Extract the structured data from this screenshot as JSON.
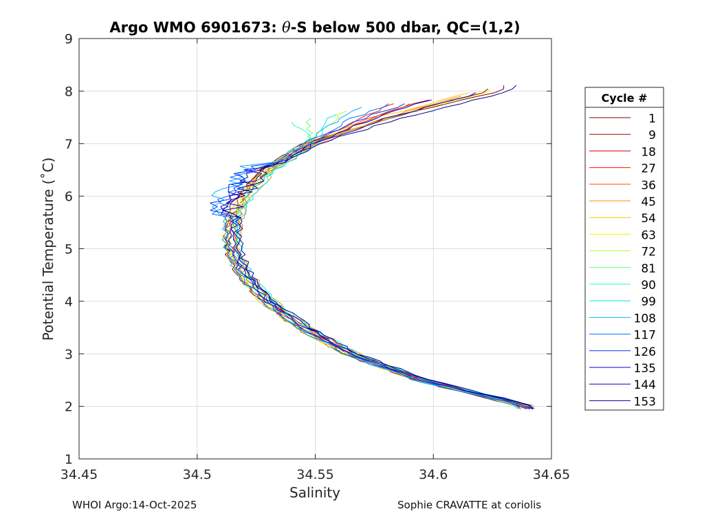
{
  "chart_data": {
    "type": "line",
    "title_prefix": "Argo WMO 6901673: ",
    "title_theta": "θ",
    "title_suffix": "-S below 500 dbar,  QC=(1,2)",
    "xlabel": "Salinity",
    "ylabel": "Potential Temperature (˚C)",
    "xlim": [
      34.45,
      34.65
    ],
    "ylim": [
      1,
      9
    ],
    "xticks": [
      34.45,
      34.5,
      34.55,
      34.6,
      34.65
    ],
    "xtick_labels": [
      "34.45",
      "34.5",
      "34.55",
      "34.6",
      "34.65"
    ],
    "yticks": [
      1,
      2,
      3,
      4,
      5,
      6,
      7,
      8,
      9
    ],
    "ytick_labels": [
      "1",
      "2",
      "3",
      "4",
      "5",
      "6",
      "7",
      "8",
      "9"
    ],
    "grid": true,
    "legend": {
      "title": "Cycle #",
      "placement": "outside-right",
      "entries": [
        {
          "label": "1",
          "color": "#800000"
        },
        {
          "label": "9",
          "color": "#a80000"
        },
        {
          "label": "18",
          "color": "#d80000"
        },
        {
          "label": "27",
          "color": "#ff1000"
        },
        {
          "label": "36",
          "color": "#ff4800"
        },
        {
          "label": "45",
          "color": "#ff8800"
        },
        {
          "label": "54",
          "color": "#ffc400"
        },
        {
          "label": "63",
          "color": "#f0f000"
        },
        {
          "label": "72",
          "color": "#a8ff30"
        },
        {
          "label": "81",
          "color": "#60ff70"
        },
        {
          "label": "90",
          "color": "#20ffb0"
        },
        {
          "label": "99",
          "color": "#00e8f0"
        },
        {
          "label": "108",
          "color": "#00b0ff"
        },
        {
          "label": "117",
          "color": "#0070ff"
        },
        {
          "label": "126",
          "color": "#0030ff"
        },
        {
          "label": "135",
          "color": "#0000e0"
        },
        {
          "label": "144",
          "color": "#0000b8"
        },
        {
          "label": "153",
          "color": "#000090"
        }
      ]
    },
    "profile_shape": {
      "T": [
        2.0,
        2.5,
        3.0,
        3.5,
        4.0,
        4.5,
        5.0,
        5.5,
        6.0,
        6.5,
        7.0,
        7.5,
        8.0
      ],
      "S": [
        34.64,
        34.595,
        34.565,
        34.545,
        34.53,
        34.52,
        34.515,
        34.515,
        34.52,
        34.53,
        34.548,
        34.575,
        34.61
      ]
    },
    "series": [
      {
        "cycle": 1,
        "smax": 34.635,
        "color": "#800000"
      },
      {
        "cycle": 9,
        "smax": 34.625,
        "color": "#a80000"
      },
      {
        "cycle": 18,
        "smax": 34.61,
        "color": "#d80000"
      },
      {
        "cycle": 27,
        "smax": 34.6,
        "color": "#ff1000"
      },
      {
        "cycle": 36,
        "smax": 34.605,
        "color": "#ff4800"
      },
      {
        "cycle": 45,
        "smax": 34.615,
        "color": "#ff8800"
      },
      {
        "cycle": 54,
        "smax": 34.62,
        "color": "#ffc400"
      },
      {
        "cycle": 63,
        "smax": 34.628,
        "color": "#f0f000"
      },
      {
        "cycle": 72,
        "smax": 34.59,
        "color": "#a8ff30"
      },
      {
        "cycle": 81,
        "smax": 34.58,
        "color": "#60ff70"
      },
      {
        "cycle": 90,
        "smax": 34.575,
        "color": "#20ffb0"
      },
      {
        "cycle": 99,
        "smax": 34.585,
        "color": "#00e8f0"
      },
      {
        "cycle": 108,
        "smax": 34.595,
        "color": "#00b0ff"
      },
      {
        "cycle": 117,
        "smax": 34.6,
        "color": "#0070ff"
      },
      {
        "cycle": 126,
        "smax": 34.605,
        "color": "#0030ff"
      },
      {
        "cycle": 135,
        "smax": 34.61,
        "color": "#0000e0"
      },
      {
        "cycle": 144,
        "smax": 34.62,
        "color": "#0000b8"
      },
      {
        "cycle": 153,
        "smax": 34.633,
        "color": "#000090"
      }
    ]
  },
  "footer": {
    "left": "WHOI Argo:14-Oct-2025",
    "right": "Sophie CRAVATTE at coriolis"
  }
}
